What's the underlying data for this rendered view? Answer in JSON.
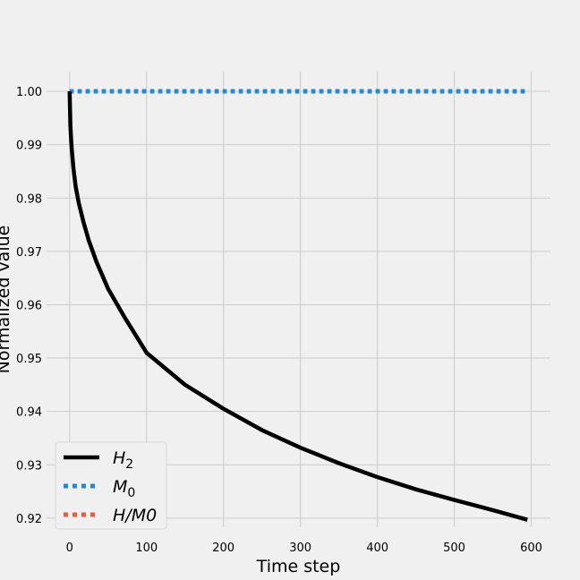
{
  "chart_data": {
    "type": "line",
    "xlabel": "Time step",
    "ylabel": "Normalized value",
    "xlim": [
      -30,
      625
    ],
    "ylim": [
      0.9183,
      1.0037
    ],
    "xticks": [
      "0",
      "100",
      "200",
      "300",
      "400",
      "500",
      "600"
    ],
    "yticks": [
      "0.92",
      "0.93",
      "0.94",
      "0.95",
      "0.96",
      "0.97",
      "0.98",
      "0.99",
      "1.00"
    ],
    "grid": true,
    "legend_position": "lower-left",
    "series": [
      {
        "name": "H_2",
        "legend_main": "H",
        "legend_sub": "2",
        "color": "#000000",
        "style": "solid",
        "x": [
          0,
          1,
          2,
          3,
          5,
          8,
          12,
          18,
          25,
          35,
          50,
          70,
          100,
          150,
          200,
          250,
          300,
          350,
          400,
          450,
          500,
          550,
          595
        ],
        "values": [
          1.0,
          0.9935,
          0.9908,
          0.9888,
          0.9855,
          0.982,
          0.979,
          0.9755,
          0.972,
          0.968,
          0.963,
          0.958,
          0.951,
          0.945,
          0.9405,
          0.9365,
          0.9332,
          0.9303,
          0.9277,
          0.9254,
          0.9234,
          0.9215,
          0.9197
        ]
      },
      {
        "name": "M_0",
        "legend_main": "M",
        "legend_sub": "0",
        "color": "#1f8bd0",
        "style": "dotted",
        "x": [
          0,
          595
        ],
        "values": [
          1.0,
          1.0
        ]
      },
      {
        "name": "H/M0",
        "legend_main": "H/M0",
        "legend_sub": "",
        "color": "#f05a3b",
        "style": "dotted",
        "x": [
          0,
          595
        ],
        "values": [
          1.0,
          1.0
        ]
      }
    ]
  }
}
